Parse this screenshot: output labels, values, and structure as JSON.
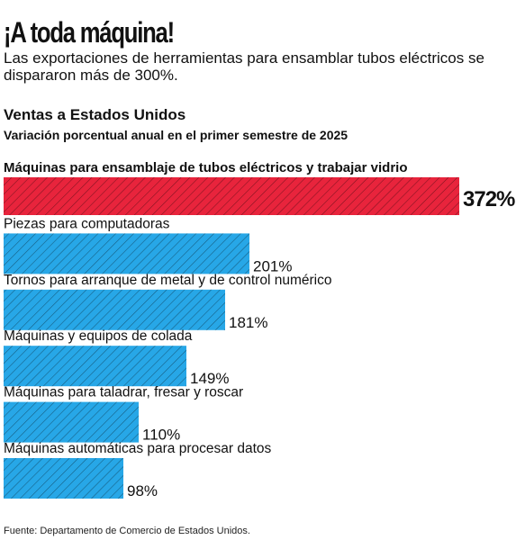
{
  "header": {
    "title": "¡A toda máquina!",
    "subtitle": "Las exportaciones de herramientas para ensamblar tubos eléctricos se dispararon más de 300%."
  },
  "section": {
    "title": "Ventas a Estados Unidos",
    "subtitle": "Variación porcentual anual en el primer semestre de 2025"
  },
  "chart_data": {
    "type": "bar",
    "orientation": "horizontal",
    "categories": [
      "Máquinas para ensamblaje de tubos eléctricos y trabajar vidrio",
      "Piezas para computadoras",
      "Tornos para arranque de metal y de control numérico",
      "Máquinas y equipos de colada",
      "Máquinas para taladrar, fresar y roscar",
      "Máquinas automáticas para procesar datos"
    ],
    "values": [
      372,
      201,
      181,
      149,
      110,
      98
    ],
    "value_labels": [
      "372%",
      "201%",
      "181%",
      "149%",
      "110%",
      "98%"
    ],
    "unit": "%",
    "colors": [
      "#e8243c",
      "#27a7e7",
      "#27a7e7",
      "#27a7e7",
      "#27a7e7",
      "#27a7e7"
    ],
    "hatch": true,
    "grid": false,
    "xlim": [
      0,
      372
    ]
  },
  "footer": {
    "source": "Fuente: Departamento de Comercio de Estados Unidos."
  }
}
